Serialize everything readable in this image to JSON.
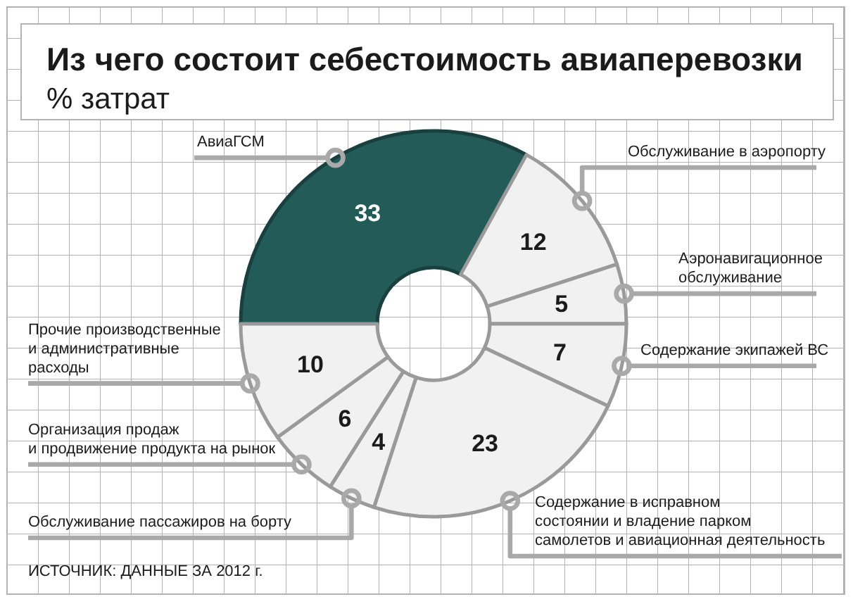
{
  "chart_data": {
    "type": "donut",
    "title": "Из чего состоит себестоимость авиаперевозки",
    "subtitle": "% затрат",
    "categories": [
      "АвиаГСМ",
      "Обслуживание в аэропорту",
      "Аэронавигационное\nобслуживание",
      "Содержание экипажей ВС",
      "Содержание в исправном\nсостоянии и владение парком\nсамолетов и авиационная деятельность",
      "Обслуживание пассажиров на борту",
      "Организация продаж\nи продвижение продукта на рынок",
      "Прочие производственные\nи административные\nрасходы"
    ],
    "values": [
      33,
      12,
      5,
      7,
      23,
      4,
      6,
      10
    ],
    "colors": [
      "#235b58",
      "#f1f1f1",
      "#f1f1f1",
      "#f1f1f1",
      "#f1f1f1",
      "#f1f1f1",
      "#f1f1f1",
      "#f1f1f1"
    ],
    "data_labels": true,
    "annotations": [
      "ИСТОЧНИК: ДАННЫЕ ЗА 2012 г."
    ]
  }
}
